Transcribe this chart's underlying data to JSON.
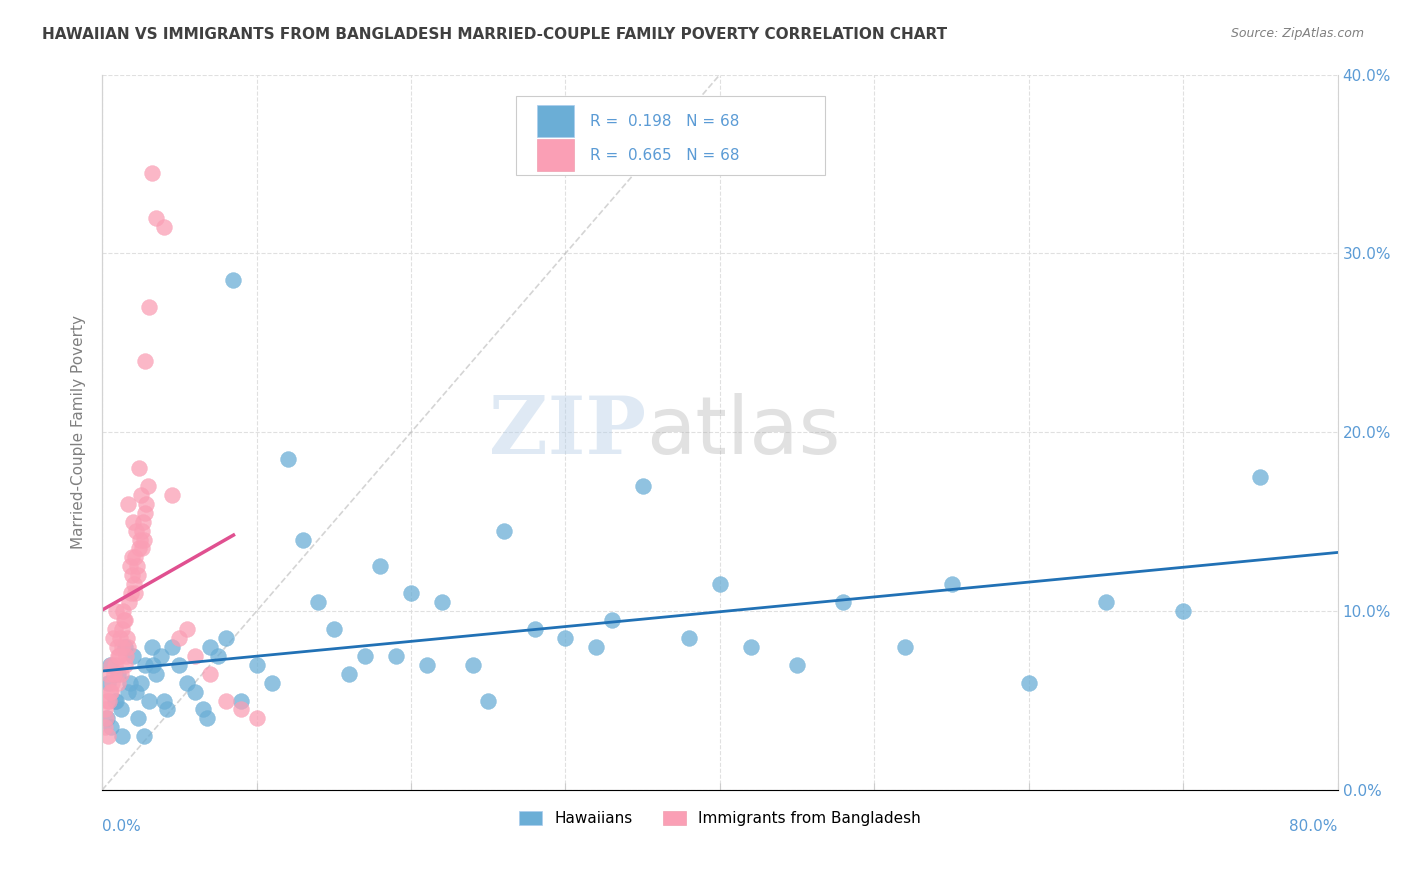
{
  "title": "HAWAIIAN VS IMMIGRANTS FROM BANGLADESH MARRIED-COUPLE FAMILY POVERTY CORRELATION CHART",
  "source": "Source: ZipAtlas.com",
  "ylabel": "Married-Couple Family Poverty",
  "xlim": [
    0.0,
    80.0
  ],
  "ylim": [
    0.0,
    40.0
  ],
  "yticks": [
    0.0,
    10.0,
    20.0,
    30.0,
    40.0
  ],
  "xticks": [
    0.0,
    10.0,
    20.0,
    30.0,
    40.0,
    50.0,
    60.0,
    70.0,
    80.0
  ],
  "blue_color": "#6baed6",
  "pink_color": "#fa9fb5",
  "blue_line_color": "#2171b5",
  "pink_line_color": "#e05090",
  "title_color": "#404040",
  "axis_label_color": "#5b9bd5",
  "hawaiians_x": [
    0.5,
    0.8,
    1.0,
    1.2,
    1.5,
    1.8,
    2.0,
    2.2,
    2.5,
    2.8,
    3.0,
    3.2,
    3.5,
    3.8,
    4.0,
    4.5,
    5.0,
    5.5,
    6.0,
    6.5,
    7.0,
    7.5,
    8.0,
    9.0,
    10.0,
    11.0,
    12.0,
    13.0,
    14.0,
    15.0,
    16.0,
    17.0,
    18.0,
    19.0,
    20.0,
    22.0,
    24.0,
    26.0,
    28.0,
    30.0,
    32.0,
    35.0,
    38.0,
    42.0,
    45.0,
    48.0,
    52.0,
    55.0,
    60.0,
    65.0,
    70.0,
    0.3,
    0.6,
    0.9,
    1.3,
    1.7,
    2.3,
    2.7,
    3.3,
    4.2,
    6.8,
    8.5,
    21.0,
    25.0,
    33.0,
    40.0,
    75.0,
    0.4
  ],
  "hawaiians_y": [
    7.0,
    5.0,
    6.5,
    4.5,
    8.0,
    6.0,
    7.5,
    5.5,
    6.0,
    7.0,
    5.0,
    8.0,
    6.5,
    7.5,
    5.0,
    8.0,
    7.0,
    6.0,
    5.5,
    4.5,
    8.0,
    7.5,
    8.5,
    5.0,
    7.0,
    6.0,
    18.5,
    14.0,
    10.5,
    9.0,
    6.5,
    7.5,
    12.5,
    7.5,
    11.0,
    10.5,
    7.0,
    14.5,
    9.0,
    8.5,
    8.0,
    17.0,
    8.5,
    8.0,
    7.0,
    10.5,
    8.0,
    11.5,
    6.0,
    10.5,
    10.0,
    4.0,
    3.5,
    5.0,
    3.0,
    5.5,
    4.0,
    3.0,
    7.0,
    4.5,
    4.0,
    28.5,
    7.0,
    5.0,
    9.5,
    11.5,
    17.5,
    6.0
  ],
  "bangladesh_x": [
    0.2,
    0.3,
    0.4,
    0.5,
    0.6,
    0.7,
    0.8,
    0.9,
    1.0,
    1.1,
    1.2,
    1.3,
    1.4,
    1.5,
    1.6,
    1.7,
    1.8,
    1.9,
    2.0,
    2.1,
    2.2,
    2.3,
    2.4,
    2.5,
    2.6,
    2.7,
    2.8,
    3.0,
    3.2,
    3.5,
    4.0,
    4.5,
    5.0,
    5.5,
    6.0,
    7.0,
    8.0,
    9.0,
    10.0,
    0.15,
    0.25,
    0.35,
    0.45,
    0.55,
    0.65,
    0.75,
    0.85,
    0.95,
    1.05,
    1.15,
    1.25,
    1.35,
    1.45,
    1.55,
    1.65,
    1.75,
    1.85,
    1.95,
    2.05,
    2.15,
    2.25,
    2.35,
    2.45,
    2.55,
    2.65,
    2.75,
    2.85,
    2.95
  ],
  "bangladesh_y": [
    4.5,
    5.0,
    6.5,
    5.5,
    7.0,
    8.5,
    9.0,
    10.0,
    6.0,
    7.5,
    6.5,
    8.0,
    9.5,
    7.0,
    8.5,
    16.0,
    12.5,
    13.0,
    15.0,
    11.0,
    14.5,
    12.0,
    18.0,
    16.5,
    13.5,
    14.0,
    24.0,
    27.0,
    34.5,
    32.0,
    31.5,
    16.5,
    8.5,
    9.0,
    7.5,
    6.5,
    5.0,
    4.5,
    4.0,
    3.5,
    4.0,
    3.0,
    5.0,
    5.5,
    6.0,
    6.5,
    7.0,
    8.0,
    7.5,
    8.5,
    9.0,
    10.0,
    9.5,
    7.5,
    8.0,
    10.5,
    11.0,
    12.0,
    11.5,
    13.0,
    12.5,
    13.5,
    14.0,
    14.5,
    15.0,
    15.5,
    16.0,
    17.0
  ]
}
